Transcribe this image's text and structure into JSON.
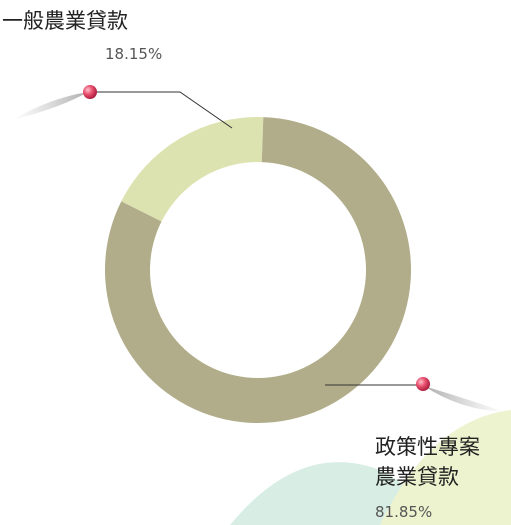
{
  "chart_data": {
    "type": "pie",
    "categories": [
      "一般農業貸款",
      "政策性專案農業貸款"
    ],
    "values": [
      18.15,
      81.85
    ],
    "value_labels": [
      "18.15%",
      "81.85%"
    ],
    "colors": [
      "#dde3b0",
      "#b1ad8a"
    ]
  }
}
